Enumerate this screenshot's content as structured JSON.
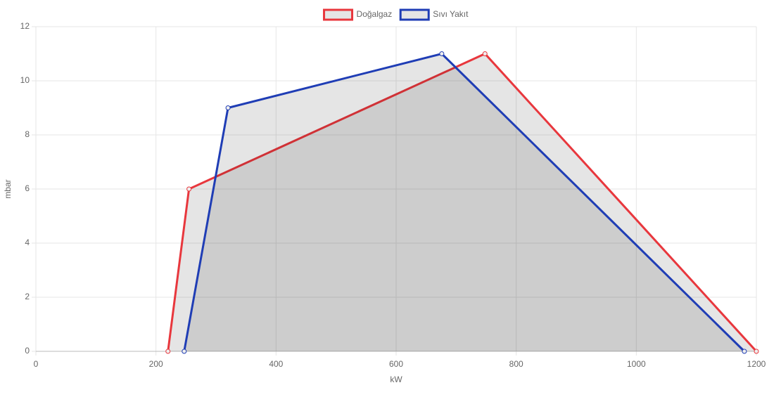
{
  "chart_data": {
    "type": "line",
    "fill": "rgba(0,0,0,0.1)",
    "xlabel": "kW",
    "ylabel": "mbar",
    "series": [
      {
        "name": "Doğalgaz",
        "color": "#e8373d",
        "x": [
          220,
          255,
          748,
          1200
        ],
        "values": [
          0,
          6,
          11,
          0
        ]
      },
      {
        "name": "Sıvı Yakıt",
        "color": "#1f3db5",
        "x": [
          247,
          320,
          676,
          1180
        ],
        "values": [
          0,
          9,
          11,
          0
        ]
      }
    ],
    "xlim": [
      0,
      1200
    ],
    "xticks": [
      0,
      200,
      400,
      600,
      800,
      1000,
      1200
    ],
    "ylim": [
      0,
      12
    ],
    "yticks": [
      0,
      2,
      4,
      6,
      8,
      10,
      12
    ],
    "grid": true,
    "legend": "top"
  }
}
